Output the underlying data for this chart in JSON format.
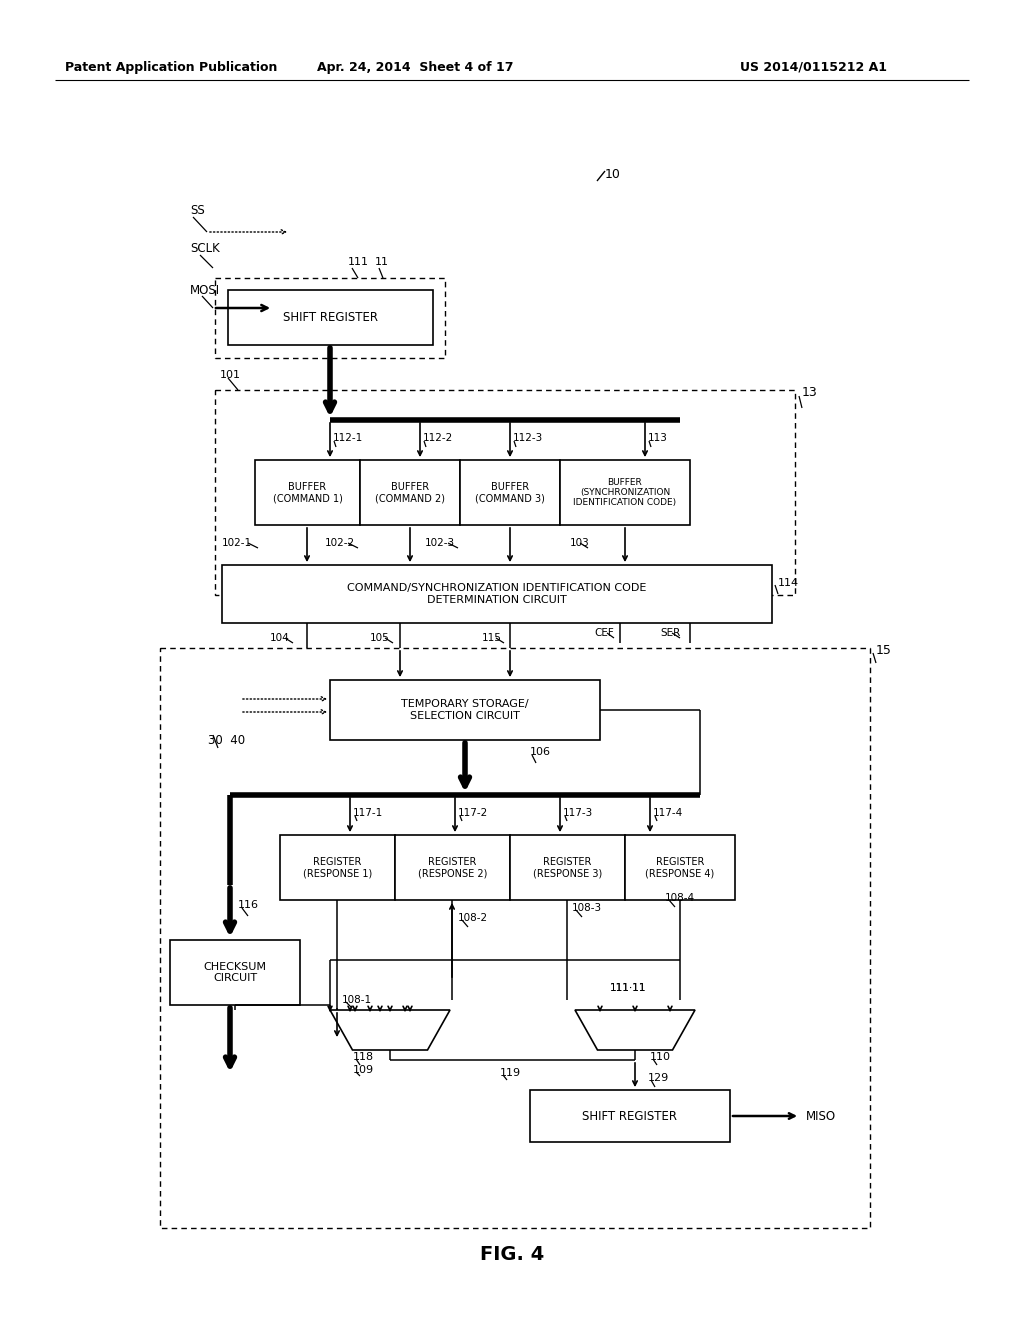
{
  "header_left": "Patent Application Publication",
  "header_center": "Apr. 24, 2014  Sheet 4 of 17",
  "header_right": "US 2014/0115212 A1",
  "fig_label": "FIG. 4",
  "bg_color": "#ffffff"
}
